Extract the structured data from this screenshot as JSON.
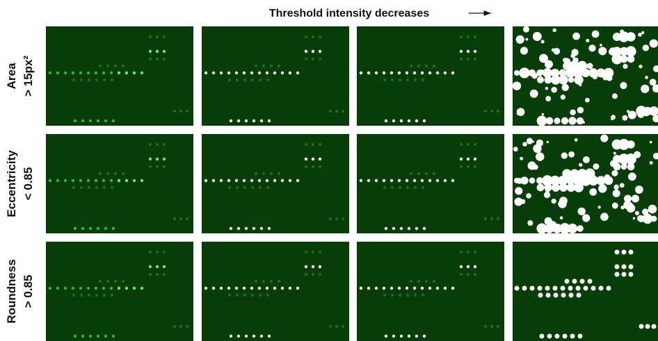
{
  "header": {
    "title": "Threshold intensity decreases"
  },
  "rows": [
    {
      "label": [
        "Area",
        "> 15px²"
      ]
    },
    {
      "label": [
        "Eccentricity",
        "< 0.85"
      ]
    },
    {
      "label": [
        "Roundness",
        "> 0.85"
      ]
    }
  ]
}
